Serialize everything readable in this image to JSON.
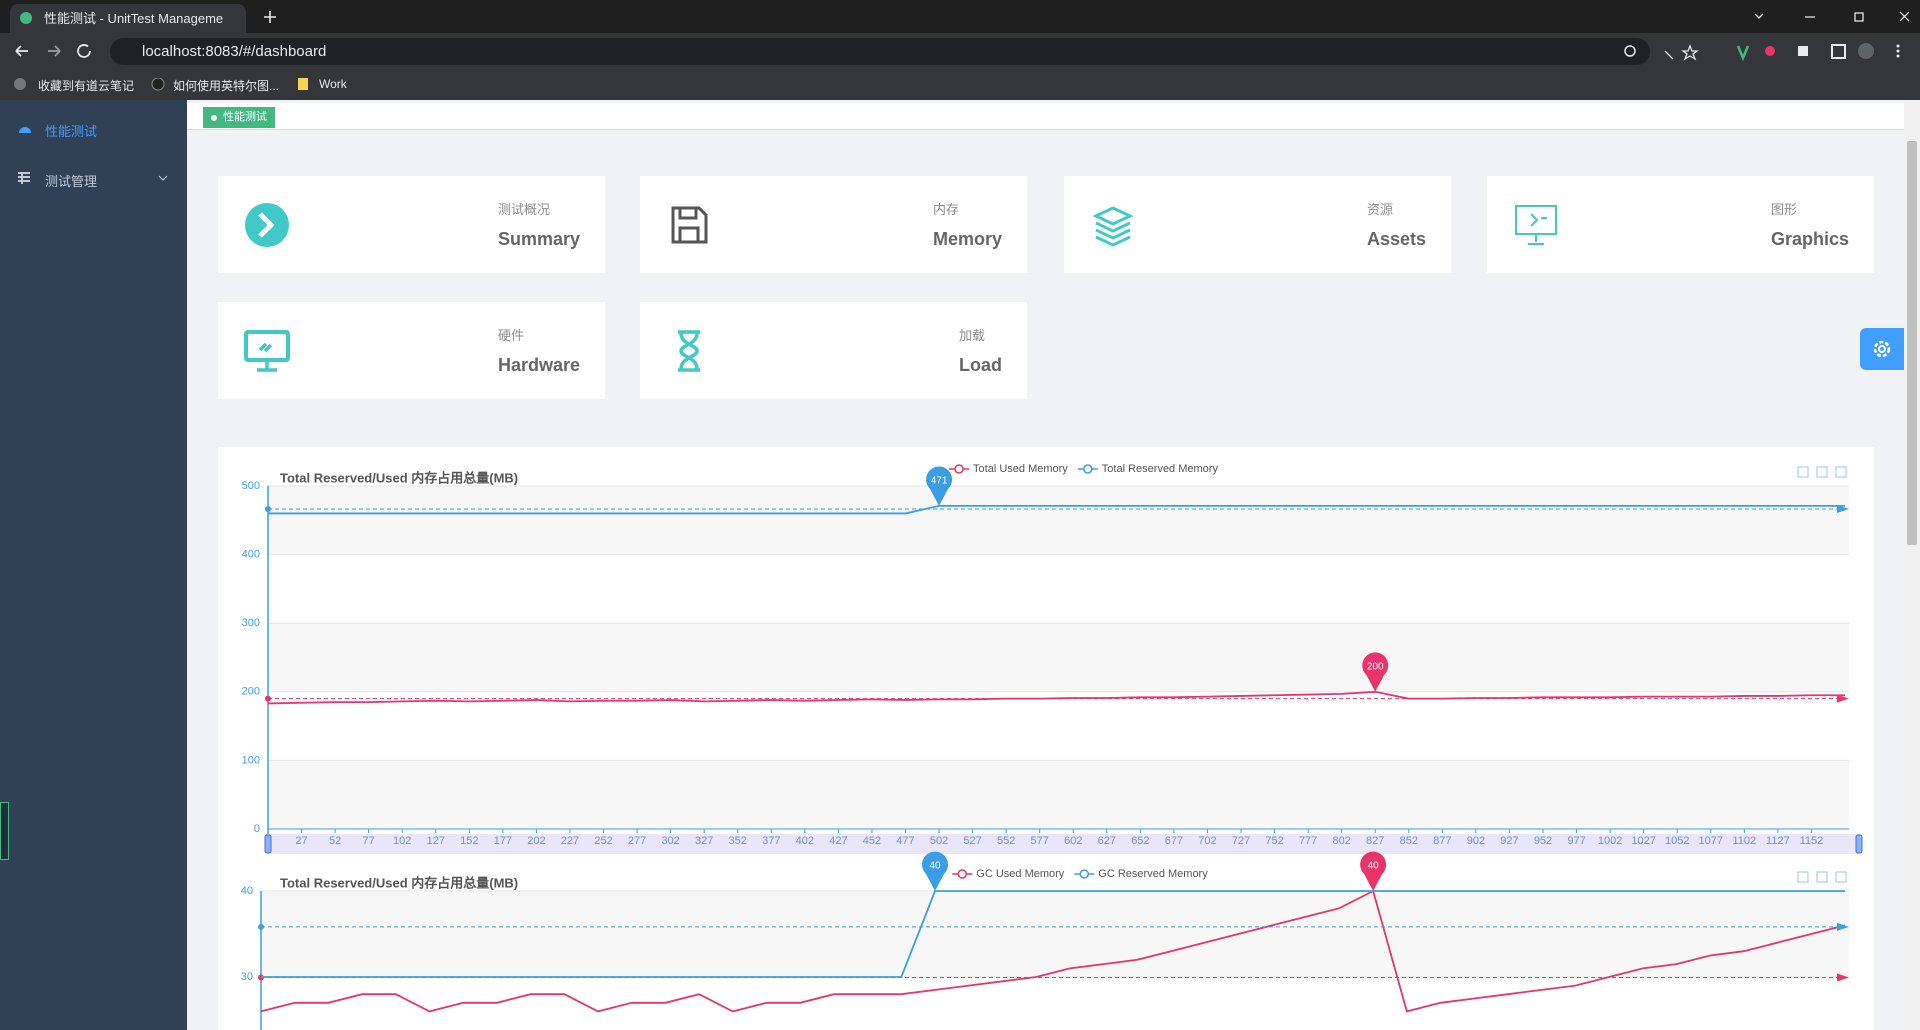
{
  "browser": {
    "tab_title": "性能测试 - UnitTest Manageme",
    "url": "localhost:8083/#/dashboard",
    "bookmarks": [
      "收藏到有道云笔记",
      "如何使用英特尔图...",
      "Work"
    ]
  },
  "sidebar": {
    "items": [
      "性能测试",
      "测试管理"
    ]
  },
  "tags": [
    "性能测试"
  ],
  "cards": [
    {
      "title": "测试概况",
      "label": "Summary"
    },
    {
      "title": "内存",
      "label": "Memory"
    },
    {
      "title": "资源",
      "label": "Assets"
    },
    {
      "title": "图形",
      "label": "Graphics"
    },
    {
      "title": "硬件",
      "label": "Hardware"
    },
    {
      "title": "加载",
      "label": "Load"
    }
  ],
  "chart_data": [
    {
      "type": "line",
      "title": "Total Reserved/Used 内存占用总量(MB)",
      "x": [
        2,
        27,
        52,
        77,
        102,
        127,
        152,
        177,
        202,
        227,
        252,
        277,
        302,
        327,
        352,
        377,
        402,
        427,
        452,
        477,
        502,
        527,
        552,
        577,
        602,
        627,
        652,
        677,
        702,
        727,
        752,
        777,
        802,
        827,
        852,
        877,
        902,
        927,
        952,
        977,
        1002,
        1027,
        1052,
        1077,
        1102,
        1127,
        1152,
        1177
      ],
      "xlim": [
        2,
        1180
      ],
      "xticks": [
        27,
        52,
        77,
        102,
        127,
        152,
        177,
        202,
        227,
        252,
        277,
        302,
        327,
        352,
        377,
        402,
        427,
        452,
        477,
        502,
        527,
        552,
        577,
        602,
        627,
        652,
        677,
        702,
        727,
        752,
        777,
        802,
        827,
        852,
        877,
        902,
        927,
        952,
        977,
        1002,
        1027,
        1052,
        1077,
        1102,
        1127,
        1152
      ],
      "ylim": [
        0,
        500
      ],
      "yticks": [
        0,
        100,
        200,
        300,
        400,
        500
      ],
      "grid": true,
      "series": [
        {
          "name": "Total Used Memory",
          "color": "#e9336a",
          "values": [
            183,
            184,
            185,
            185,
            186,
            187,
            186,
            187,
            188,
            186,
            187,
            187,
            188,
            186,
            187,
            188,
            187,
            188,
            189,
            188,
            189,
            189,
            190,
            190,
            191,
            191,
            192,
            192,
            193,
            194,
            195,
            196,
            197,
            200,
            190,
            190,
            191,
            191,
            192,
            192,
            192,
            193,
            193,
            193,
            194,
            194,
            195,
            195
          ]
        },
        {
          "name": "Total Reserved Memory",
          "color": "#3a9ee4",
          "values": [
            460,
            460,
            460,
            460,
            460,
            460,
            460,
            460,
            460,
            460,
            460,
            460,
            460,
            460,
            460,
            460,
            460,
            460,
            460,
            460,
            471,
            471,
            471,
            471,
            471,
            471,
            471,
            471,
            471,
            471,
            471,
            471,
            471,
            471,
            471,
            471,
            471,
            471,
            471,
            471,
            471,
            471,
            471,
            471,
            471,
            471,
            471,
            471
          ]
        }
      ]
    },
    {
      "type": "line",
      "title": "Total Reserved/Used 内存占用总量(MB)",
      "x": [
        2,
        27,
        52,
        77,
        102,
        127,
        152,
        177,
        202,
        227,
        252,
        277,
        302,
        327,
        352,
        377,
        402,
        427,
        452,
        477,
        502,
        527,
        552,
        577,
        602,
        627,
        652,
        677,
        702,
        727,
        752,
        777,
        802,
        827,
        852,
        877,
        902,
        927,
        952,
        977,
        1002,
        1027,
        1052,
        1077,
        1102,
        1127,
        1152,
        1177
      ],
      "xlim": [
        2,
        1180
      ],
      "ylim": [
        20,
        40
      ],
      "yticks": [
        30,
        40
      ],
      "grid": true,
      "series": [
        {
          "name": "GC Used Memory",
          "color": "#e9336a",
          "values": [
            26,
            27,
            27,
            28,
            28,
            26,
            27,
            27,
            28,
            28,
            26,
            27,
            27,
            28,
            26,
            27,
            27,
            28,
            28,
            28,
            28.5,
            29,
            29.5,
            30,
            31,
            31.5,
            32,
            33,
            34,
            35,
            36,
            37,
            38,
            40,
            26,
            27,
            27.5,
            28,
            28.5,
            29,
            30,
            31,
            31.5,
            32.5,
            33,
            34,
            35,
            36
          ]
        },
        {
          "name": "GC Reserved Memory",
          "color": "#3a9ee4",
          "values": [
            30,
            30,
            30,
            30,
            30,
            30,
            30,
            30,
            30,
            30,
            30,
            30,
            30,
            30,
            30,
            30,
            30,
            30,
            30,
            30,
            40,
            40,
            40,
            40,
            40,
            40,
            40,
            40,
            40,
            40,
            40,
            40,
            40,
            40,
            40,
            40,
            40,
            40,
            40,
            40,
            40,
            40,
            40,
            40,
            40,
            40,
            40,
            40
          ]
        }
      ]
    }
  ]
}
